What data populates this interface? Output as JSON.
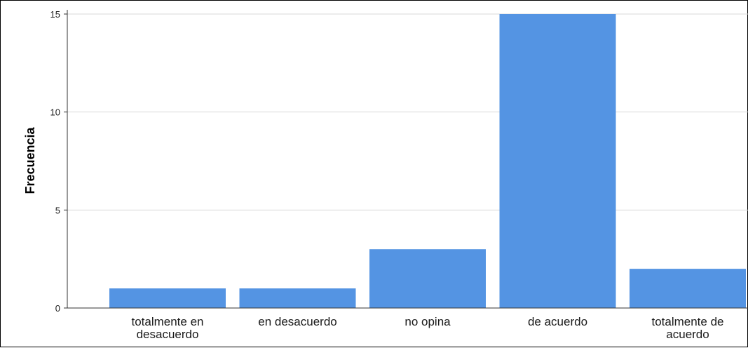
{
  "chart_data": {
    "type": "bar",
    "title": "",
    "xlabel": "",
    "ylabel": "Frecuencia",
    "categories": [
      [
        "totalmente en",
        "desacuerdo"
      ],
      [
        "en desacuerdo"
      ],
      [
        "no opina"
      ],
      [
        "de acuerdo"
      ],
      [
        "totalmente de",
        "acuerdo"
      ]
    ],
    "values": [
      1,
      1,
      3,
      15,
      2
    ],
    "ylim": [
      0,
      15
    ],
    "yticks": [
      0,
      5,
      10,
      15
    ],
    "grid": true,
    "legend": "none",
    "colors": {
      "bar": "#5494e3",
      "grid": "#d9d9d9",
      "axis": "#333333"
    }
  }
}
